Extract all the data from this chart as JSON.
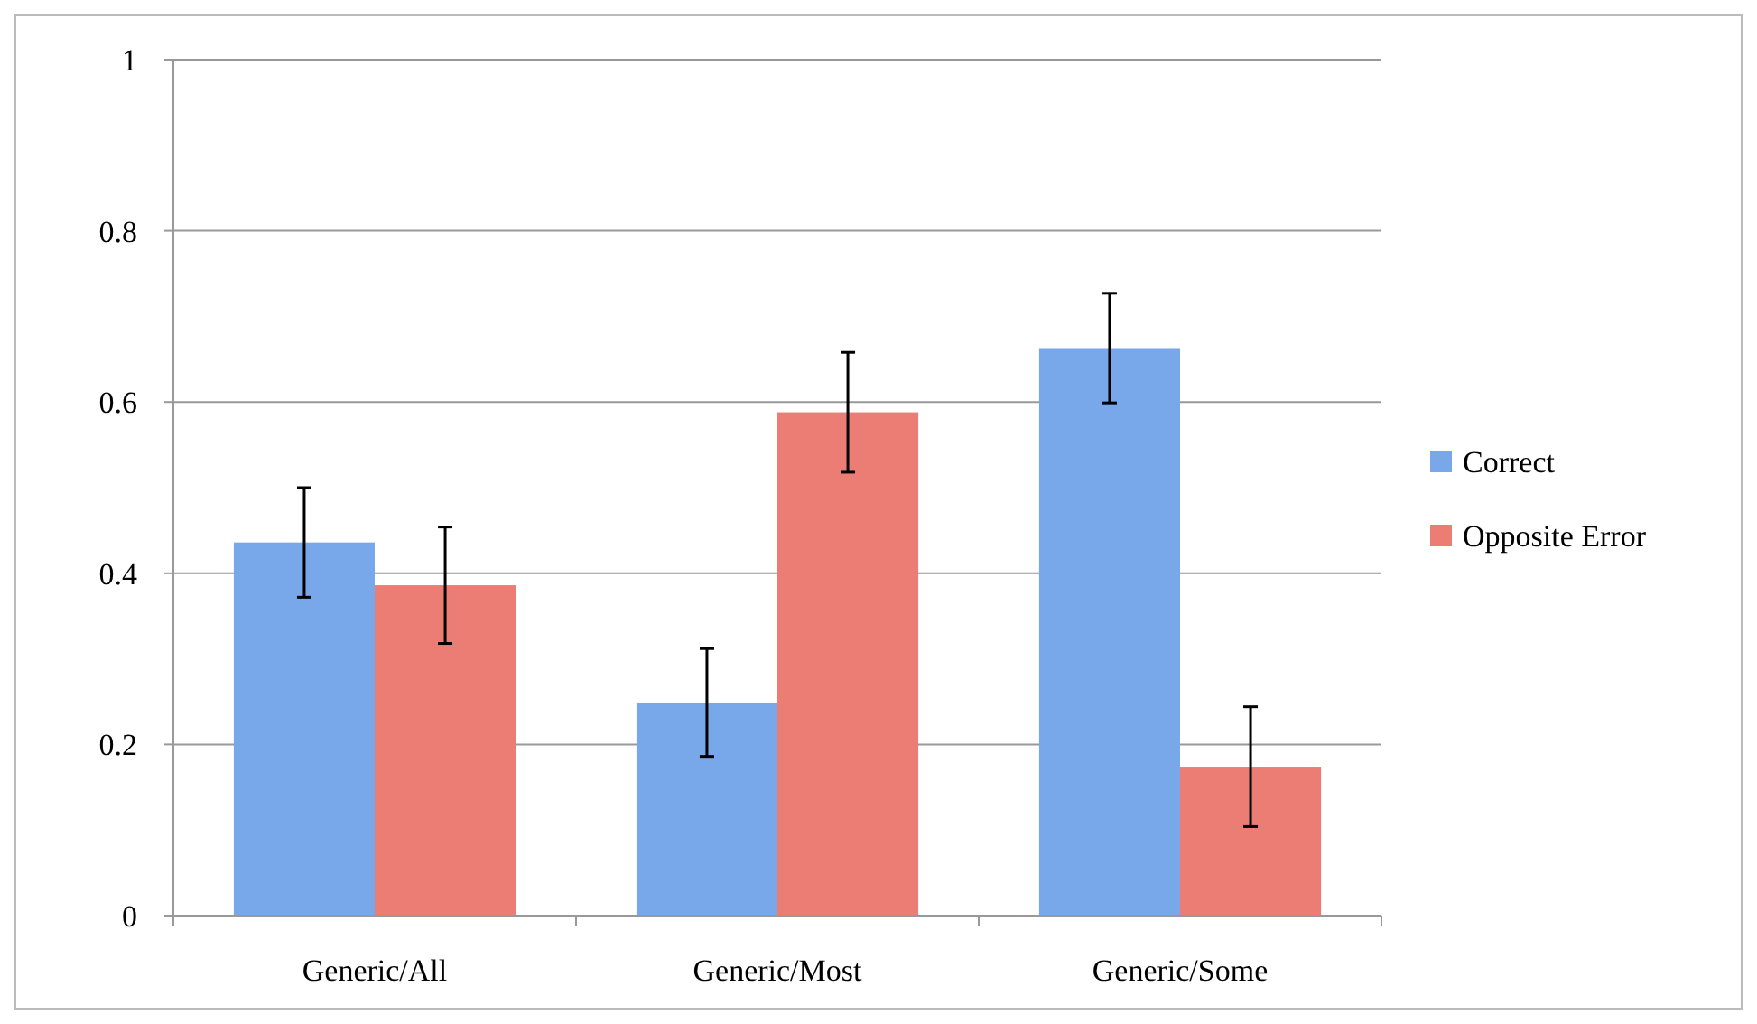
{
  "chart_data": {
    "type": "bar",
    "categories": [
      "Generic/All",
      "Generic/Most",
      "Generic/Some"
    ],
    "series": [
      {
        "name": "Correct",
        "color": "#79a8ea",
        "values": [
          0.436,
          0.249,
          0.663
        ],
        "errors": [
          0.064,
          0.063,
          0.064
        ]
      },
      {
        "name": "Opposite Error",
        "color": "#ec7d75",
        "values": [
          0.386,
          0.588,
          0.174
        ],
        "errors": [
          0.068,
          0.07,
          0.07
        ]
      }
    ],
    "ylim": [
      0,
      1
    ],
    "yticks": [
      0,
      0.2,
      0.4,
      0.6,
      0.8,
      1
    ],
    "grid": "y",
    "legend": "right"
  }
}
